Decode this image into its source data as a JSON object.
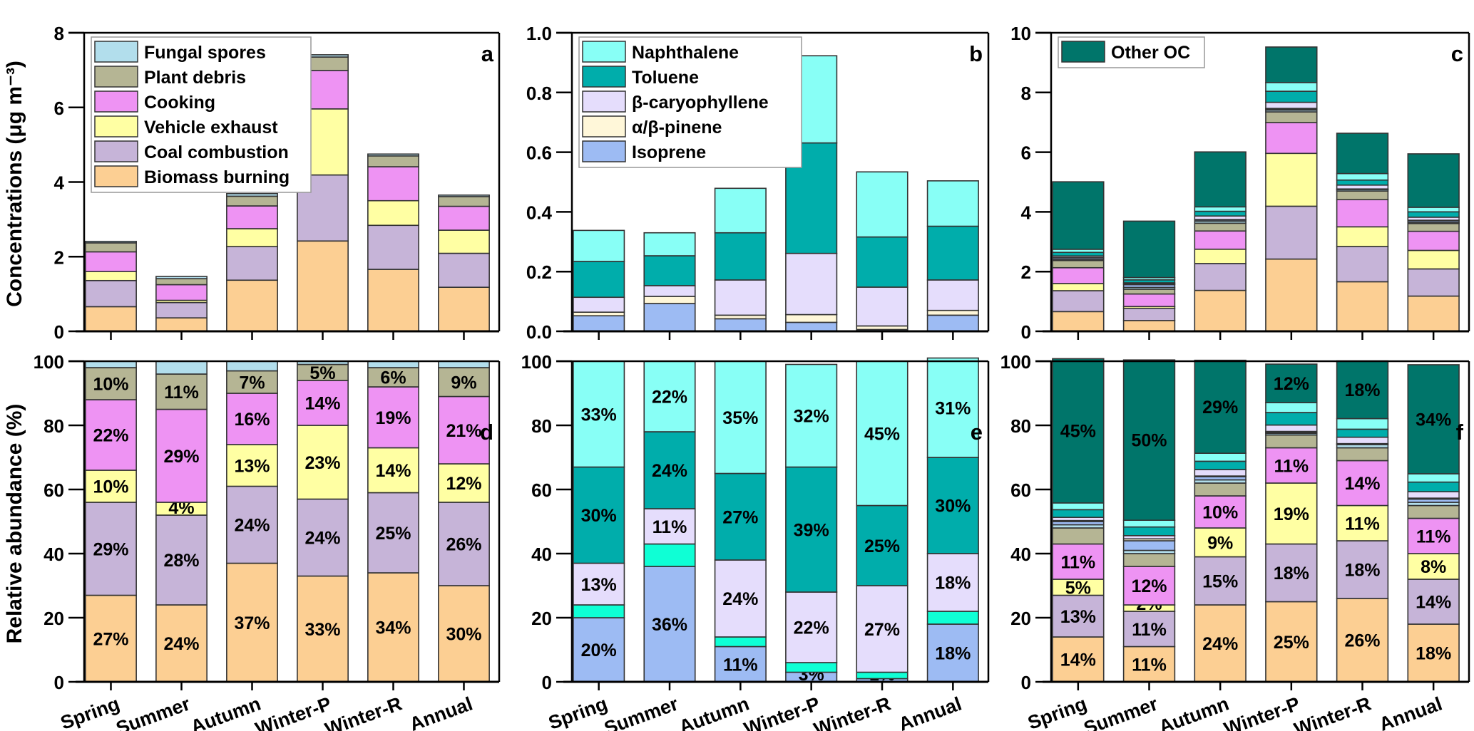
{
  "chart_data": [
    {
      "panel": "a",
      "type": "bar",
      "stacked": true,
      "ylabel": "Concentrations (μg m⁻³)",
      "ylim": [
        0,
        8
      ],
      "yticks": [
        0,
        2,
        4,
        6,
        8
      ],
      "categories": [
        "Spring",
        "Summer",
        "Autumn",
        "Winter-P",
        "Winter-R",
        "Annual"
      ],
      "legend_position": "top-left",
      "series": [
        {
          "name": "Biomass burning",
          "color": "#FCCF93",
          "values": [
            0.66,
            0.36,
            1.37,
            2.42,
            1.66,
            1.18
          ]
        },
        {
          "name": "Coal combustion",
          "color": "#C6B4D8",
          "values": [
            0.7,
            0.41,
            0.9,
            1.77,
            1.18,
            0.91
          ]
        },
        {
          "name": "Vehicle exhaust",
          "color": "#FFFFA3",
          "values": [
            0.24,
            0.06,
            0.48,
            1.77,
            0.66,
            0.62
          ]
        },
        {
          "name": "Cooking",
          "color": "#EE93F3",
          "values": [
            0.53,
            0.42,
            0.61,
            1.03,
            0.91,
            0.64
          ]
        },
        {
          "name": "Plant debris",
          "color": "#B5B594",
          "values": [
            0.24,
            0.16,
            0.26,
            0.36,
            0.29,
            0.26
          ]
        },
        {
          "name": "Fungal spores",
          "color": "#B2DEEC",
          "values": [
            0.04,
            0.06,
            0.07,
            0.06,
            0.05,
            0.04
          ]
        }
      ]
    },
    {
      "panel": "b",
      "type": "bar",
      "stacked": true,
      "ylabel": "",
      "ylim": [
        0,
        1.0
      ],
      "yticks": [
        "0.0",
        "0.2",
        "0.4",
        "0.6",
        "0.8",
        "1.0"
      ],
      "categories": [
        "Spring",
        "Summer",
        "Autumn",
        "Winter-P",
        "Winter-R",
        "Annual"
      ],
      "legend_position": "top-left",
      "series": [
        {
          "name": "Isoprene",
          "color": "#9DBBF3",
          "values": [
            0.052,
            0.093,
            0.042,
            0.03,
            0.006,
            0.054
          ]
        },
        {
          "name": "α/β-pinene",
          "color": "#FFF7D9",
          "values": [
            0.012,
            0.024,
            0.012,
            0.026,
            0.012,
            0.016
          ]
        },
        {
          "name": "β-caryophyllene",
          "color": "#E5DDFC",
          "values": [
            0.05,
            0.036,
            0.118,
            0.205,
            0.13,
            0.102
          ]
        },
        {
          "name": "Toluene",
          "color": "#00ADAB",
          "values": [
            0.12,
            0.1,
            0.158,
            0.37,
            0.168,
            0.18
          ]
        },
        {
          "name": "Naphthalene",
          "color": "#88FFF6",
          "values": [
            0.104,
            0.077,
            0.149,
            0.292,
            0.218,
            0.152
          ]
        }
      ]
    },
    {
      "panel": "c",
      "type": "bar",
      "stacked": true,
      "ylabel": "",
      "ylim": [
        0,
        10
      ],
      "yticks": [
        0,
        2,
        4,
        6,
        8,
        10
      ],
      "categories": [
        "Spring",
        "Summer",
        "Autumn",
        "Winter-P",
        "Winter-R",
        "Annual"
      ],
      "legend_position": "top-left",
      "series": [
        {
          "name": "Biomass burning",
          "color": "#FCCF93",
          "values": [
            0.66,
            0.36,
            1.37,
            2.42,
            1.66,
            1.18
          ]
        },
        {
          "name": "Coal combustion",
          "color": "#C6B4D8",
          "values": [
            0.7,
            0.41,
            0.9,
            1.77,
            1.18,
            0.91
          ]
        },
        {
          "name": "Vehicle exhaust",
          "color": "#FFFFA3",
          "values": [
            0.24,
            0.06,
            0.48,
            1.77,
            0.66,
            0.62
          ]
        },
        {
          "name": "Cooking",
          "color": "#EE93F3",
          "values": [
            0.53,
            0.42,
            0.61,
            1.03,
            0.91,
            0.64
          ]
        },
        {
          "name": "Plant debris",
          "color": "#B5B594",
          "values": [
            0.24,
            0.16,
            0.26,
            0.36,
            0.29,
            0.26
          ]
        },
        {
          "name": "Fungal spores",
          "color": "#B2DEEC",
          "values": [
            0.04,
            0.06,
            0.07,
            0.06,
            0.05,
            0.04
          ]
        },
        {
          "name": "Isoprene",
          "color": "#9DBBF3",
          "values": [
            0.052,
            0.093,
            0.042,
            0.03,
            0.006,
            0.054
          ]
        },
        {
          "name": "α/β-pinene",
          "color": "#FFF7D9",
          "values": [
            0.012,
            0.024,
            0.012,
            0.026,
            0.012,
            0.016
          ]
        },
        {
          "name": "β-caryophyllene",
          "color": "#E5DDFC",
          "values": [
            0.05,
            0.036,
            0.118,
            0.205,
            0.13,
            0.102
          ]
        },
        {
          "name": "Toluene",
          "color": "#00ADAB",
          "values": [
            0.12,
            0.1,
            0.158,
            0.37,
            0.168,
            0.18
          ]
        },
        {
          "name": "Naphthalene",
          "color": "#88FFF6",
          "values": [
            0.104,
            0.077,
            0.149,
            0.292,
            0.218,
            0.152
          ]
        },
        {
          "name": "Other OC",
          "color": "#00756A",
          "values": [
            2.26,
            1.89,
            1.84,
            1.19,
            1.35,
            1.79
          ]
        }
      ],
      "legend_entries": [
        "Other OC"
      ]
    },
    {
      "panel": "d",
      "type": "bar",
      "stacked": true,
      "ylabel": "Relative abundance (%)",
      "ylim": [
        0,
        100
      ],
      "yticks": [
        0,
        20,
        40,
        60,
        80,
        100
      ],
      "categories": [
        "Spring",
        "Summer",
        "Autumn",
        "Winter-P",
        "Winter-R",
        "Annual"
      ],
      "series": [
        {
          "name": "Biomass burning",
          "color": "#FCCF93",
          "values": [
            27,
            24,
            37,
            33,
            34,
            30
          ],
          "labels": [
            "27%",
            "24%",
            "37%",
            "33%",
            "34%",
            "30%"
          ]
        },
        {
          "name": "Coal combustion",
          "color": "#C6B4D8",
          "values": [
            29,
            28,
            24,
            24,
            25,
            26
          ],
          "labels": [
            "29%",
            "28%",
            "24%",
            "24%",
            "25%",
            "26%"
          ]
        },
        {
          "name": "Vehicle exhaust",
          "color": "#FFFFA3",
          "values": [
            10,
            4,
            13,
            23,
            14,
            12
          ],
          "labels": [
            "10%",
            "4%",
            "13%",
            "23%",
            "14%",
            "12%"
          ]
        },
        {
          "name": "Cooking",
          "color": "#EE93F3",
          "values": [
            22,
            29,
            16,
            14,
            19,
            21
          ],
          "labels": [
            "22%",
            "29%",
            "16%",
            "14%",
            "19%",
            "21%"
          ]
        },
        {
          "name": "Plant debris",
          "color": "#B5B594",
          "values": [
            10,
            11,
            7,
            5,
            6,
            9
          ],
          "labels": [
            "10%",
            "11%",
            "7%",
            "5%",
            "6%",
            "9%"
          ]
        },
        {
          "name": "Fungal spores",
          "color": "#B2DEEC",
          "values": [
            2,
            4,
            3,
            1,
            2,
            2
          ],
          "labels": [
            "",
            "",
            "",
            "",
            "",
            ""
          ]
        }
      ]
    },
    {
      "panel": "e",
      "type": "bar",
      "stacked": true,
      "ylabel": "",
      "ylim": [
        0,
        100
      ],
      "yticks": [
        0,
        20,
        40,
        60,
        80,
        100
      ],
      "categories": [
        "Spring",
        "Summer",
        "Autumn",
        "Winter-P",
        "Winter-R",
        "Annual"
      ],
      "series": [
        {
          "name": "Isoprene",
          "color": "#9DBBF3",
          "values": [
            20,
            36,
            11,
            3,
            1,
            18
          ],
          "labels": [
            "20%",
            "36%",
            "11%",
            "3%",
            "1%",
            "18%"
          ]
        },
        {
          "name": "α/β-pinene",
          "color": "#0FFFD5",
          "values": [
            4,
            7,
            3,
            3,
            2,
            4
          ],
          "labels": [
            "",
            "",
            "",
            "",
            "",
            ""
          ]
        },
        {
          "name": "β-caryophyllene",
          "color": "#E5DDFC",
          "values": [
            13,
            11,
            24,
            22,
            27,
            18
          ],
          "labels": [
            "13%",
            "11%",
            "24%",
            "22%",
            "27%",
            "18%"
          ]
        },
        {
          "name": "Toluene",
          "color": "#00ADAB",
          "values": [
            30,
            24,
            27,
            39,
            25,
            30
          ],
          "labels": [
            "30%",
            "24%",
            "27%",
            "39%",
            "25%",
            "30%"
          ]
        },
        {
          "name": "Naphthalene",
          "color": "#88FFF6",
          "values": [
            33,
            22,
            35,
            32,
            45,
            31
          ],
          "labels": [
            "33%",
            "22%",
            "35%",
            "32%",
            "45%",
            "31%"
          ]
        }
      ]
    },
    {
      "panel": "f",
      "type": "bar",
      "stacked": true,
      "ylabel": "",
      "ylim": [
        0,
        100
      ],
      "yticks": [
        0,
        20,
        40,
        60,
        80,
        100
      ],
      "categories": [
        "Spring",
        "Summer",
        "Autumn",
        "Winter-P",
        "Winter-R",
        "Annual"
      ],
      "series": [
        {
          "name": "Biomass burning",
          "color": "#FCCF93",
          "values": [
            14,
            11,
            24,
            25,
            26,
            18
          ],
          "labels": [
            "14%",
            "11%",
            "24%",
            "25%",
            "26%",
            "18%"
          ]
        },
        {
          "name": "Coal combustion",
          "color": "#C6B4D8",
          "values": [
            13,
            11,
            15,
            18,
            18,
            14
          ],
          "labels": [
            "13%",
            "11%",
            "15%",
            "18%",
            "18%",
            "14%"
          ]
        },
        {
          "name": "Vehicle exhaust",
          "color": "#FFFFA3",
          "values": [
            5,
            2,
            9,
            19,
            11,
            8
          ],
          "labels": [
            "5%",
            "2%",
            "9%",
            "19%",
            "11%",
            "8%"
          ]
        },
        {
          "name": "Cooking",
          "color": "#EE93F3",
          "values": [
            11,
            12,
            10,
            11,
            14,
            11
          ],
          "labels": [
            "11%",
            "12%",
            "10%",
            "11%",
            "14%",
            "11%"
          ]
        },
        {
          "name": "Plant debris",
          "color": "#B5B594",
          "values": [
            5,
            4,
            4,
            4,
            4,
            4
          ],
          "labels": [
            "",
            "",
            "",
            "",
            "",
            ""
          ]
        },
        {
          "name": "Fungal spores",
          "color": "#B2DEEC",
          "values": [
            1,
            1,
            1,
            0.5,
            1,
            1
          ],
          "labels": [
            "",
            "",
            "",
            "",
            "",
            ""
          ]
        },
        {
          "name": "Isoprene",
          "color": "#9DBBF3",
          "values": [
            1,
            3,
            1,
            0.3,
            0.1,
            1
          ],
          "labels": [
            "",
            "",
            "",
            "",
            "",
            ""
          ]
        },
        {
          "name": "α/β-pinene",
          "color": "#FFF7D9",
          "values": [
            0.3,
            0.6,
            0.2,
            0.3,
            0.2,
            0.3
          ],
          "labels": [
            "",
            "",
            "",
            "",
            "",
            ""
          ]
        },
        {
          "name": "β-caryophyllene",
          "color": "#E5DDFC",
          "values": [
            1,
            1,
            2,
            2,
            2,
            2
          ],
          "labels": [
            "",
            "",
            "",
            "",
            "",
            ""
          ]
        },
        {
          "name": "Toluene",
          "color": "#00ADAB",
          "values": [
            2.4,
            2.7,
            2.6,
            3.9,
            2.5,
            3
          ],
          "labels": [
            "",
            "",
            "",
            "",
            "",
            ""
          ]
        },
        {
          "name": "Naphthalene",
          "color": "#88FFF6",
          "values": [
            2.1,
            2.1,
            2.5,
            3.1,
            3.3,
            2.6
          ],
          "labels": [
            "",
            "",
            "",
            "",
            "",
            ""
          ]
        },
        {
          "name": "Other OC",
          "color": "#00756A",
          "values": [
            45,
            50,
            29,
            12,
            18,
            34
          ],
          "labels": [
            "45%",
            "50%",
            "29%",
            "12%",
            "18%",
            "34%"
          ]
        }
      ]
    }
  ],
  "panel_letters": [
    "a",
    "b",
    "c",
    "d",
    "e",
    "f"
  ],
  "legends": {
    "a": [
      "Fungal spores",
      "Plant debris",
      "Cooking",
      "Vehicle exhaust",
      "Coal combustion",
      "Biomass burning"
    ],
    "b": [
      "Naphthalene",
      "Toluene",
      "β-caryophyllene",
      "α/β-pinene",
      "Isoprene"
    ],
    "c": [
      "Other OC"
    ]
  },
  "axis_labels": {
    "top_y": "Concentrations (μg m⁻³)",
    "bottom_y": "Relative abundance (%)"
  }
}
